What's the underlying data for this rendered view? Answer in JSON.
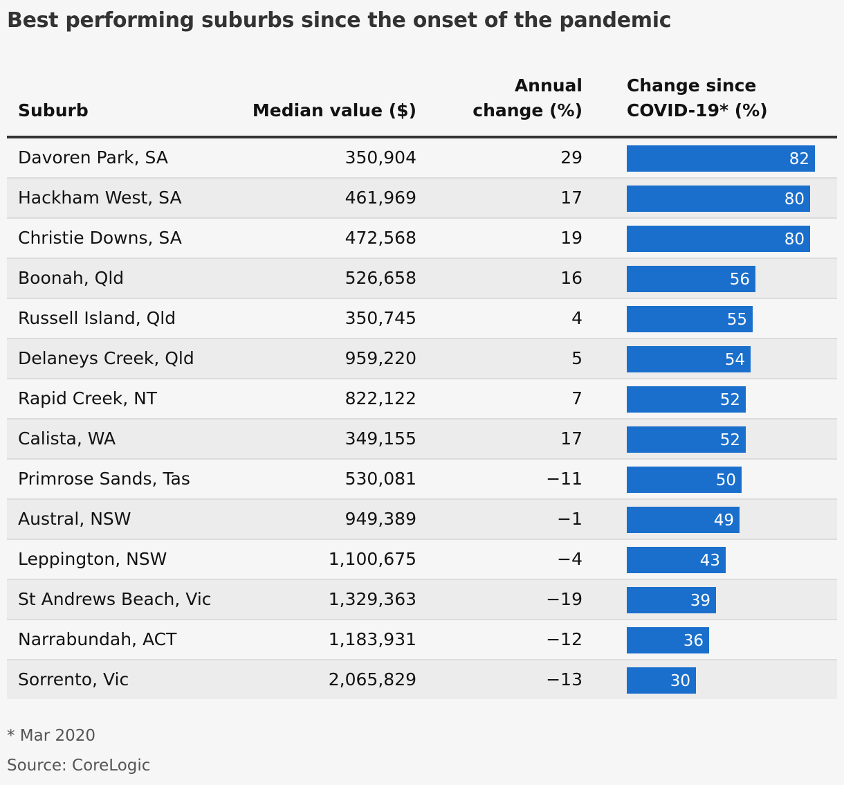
{
  "title": "Best performing suburbs since the onset of the pandemic",
  "headers": {
    "suburb": "Suburb",
    "median": "Median value ($)",
    "annual_l1": "Annual",
    "annual_l2": "change (%)",
    "change_l1": "Change since",
    "change_l2": "COVID-19* (%)"
  },
  "chart_data": {
    "type": "table",
    "title": "Best performing suburbs since the onset of the pandemic",
    "columns": [
      "Suburb",
      "Median value ($)",
      "Annual change (%)",
      "Change since COVID-19* (%)"
    ],
    "rows": [
      {
        "suburb": "Davoren Park, SA",
        "median": "350,904",
        "annual": "29",
        "change": 82
      },
      {
        "suburb": "Hackham West, SA",
        "median": "461,969",
        "annual": "17",
        "change": 80
      },
      {
        "suburb": "Christie Downs, SA",
        "median": "472,568",
        "annual": "19",
        "change": 80
      },
      {
        "suburb": "Boonah, Qld",
        "median": "526,658",
        "annual": "16",
        "change": 56
      },
      {
        "suburb": "Russell Island, Qld",
        "median": "350,745",
        "annual": "4",
        "change": 55
      },
      {
        "suburb": "Delaneys Creek, Qld",
        "median": "959,220",
        "annual": "5",
        "change": 54
      },
      {
        "suburb": "Rapid Creek, NT",
        "median": "822,122",
        "annual": "7",
        "change": 52
      },
      {
        "suburb": "Calista, WA",
        "median": "349,155",
        "annual": "17",
        "change": 52
      },
      {
        "suburb": "Primrose Sands, Tas",
        "median": "530,081",
        "annual": "−11",
        "change": 50
      },
      {
        "suburb": "Austral, NSW",
        "median": "949,389",
        "annual": "−1",
        "change": 49
      },
      {
        "suburb": "Leppington, NSW",
        "median": "1,100,675",
        "annual": "−4",
        "change": 43
      },
      {
        "suburb": "St Andrews Beach, Vic",
        "median": "1,329,363",
        "annual": "−19",
        "change": 39
      },
      {
        "suburb": "Narrabundah, ACT",
        "median": "1,183,931",
        "annual": "−12",
        "change": 36
      },
      {
        "suburb": "Sorrento, Vic",
        "median": "2,065,829",
        "annual": "−13",
        "change": 30
      }
    ],
    "bar_color": "#1a6fcc"
  },
  "footnote": "* Mar 2020",
  "source": "Source: CoreLogic"
}
